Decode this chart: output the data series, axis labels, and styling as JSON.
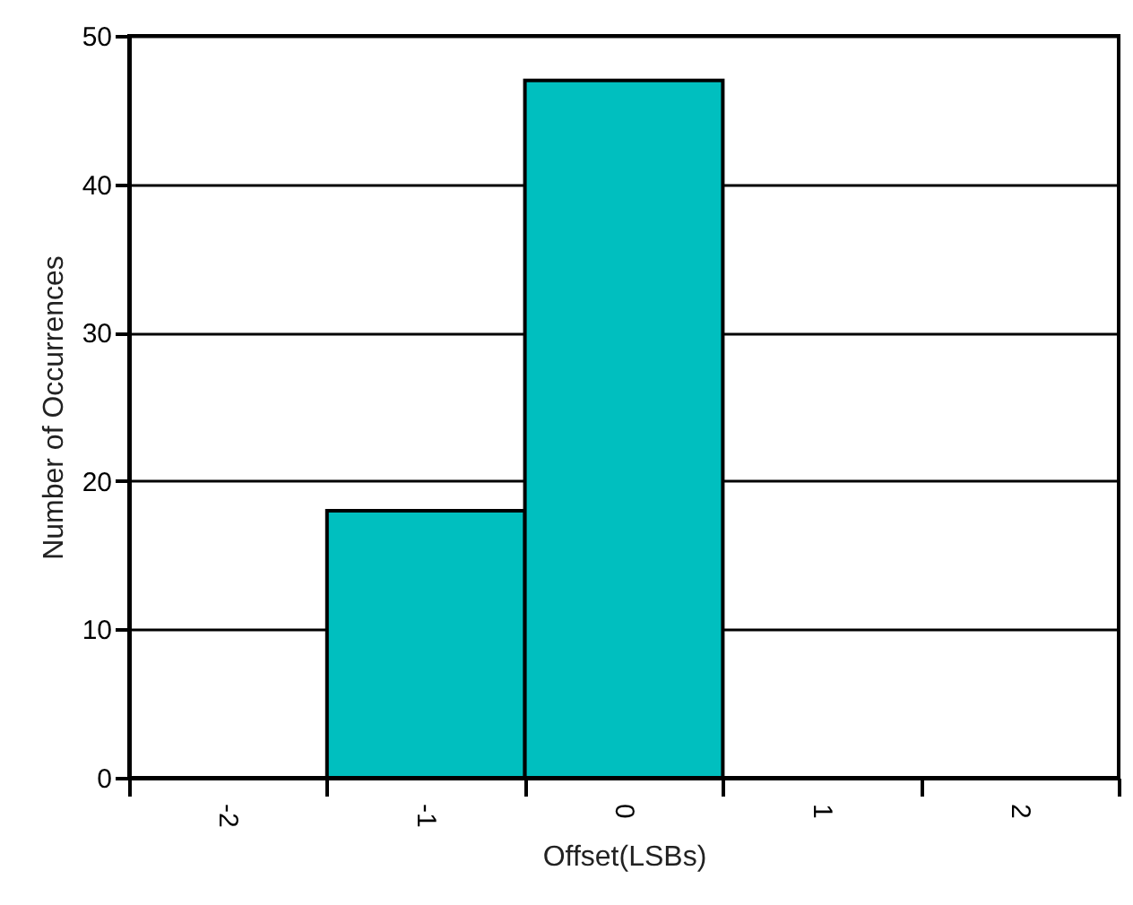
{
  "chart_data": {
    "type": "bar",
    "xlabel": "Offset(LSBs)",
    "ylabel": "Number of Occurrences",
    "categories": [
      "-2",
      "-1",
      "0",
      "1",
      "2"
    ],
    "values": [
      0,
      18,
      47,
      0,
      0
    ],
    "color": "#00bfbf",
    "ylim": [
      0,
      50
    ],
    "yticks": [
      0,
      10,
      20,
      30,
      40,
      50
    ],
    "grid": "y"
  }
}
